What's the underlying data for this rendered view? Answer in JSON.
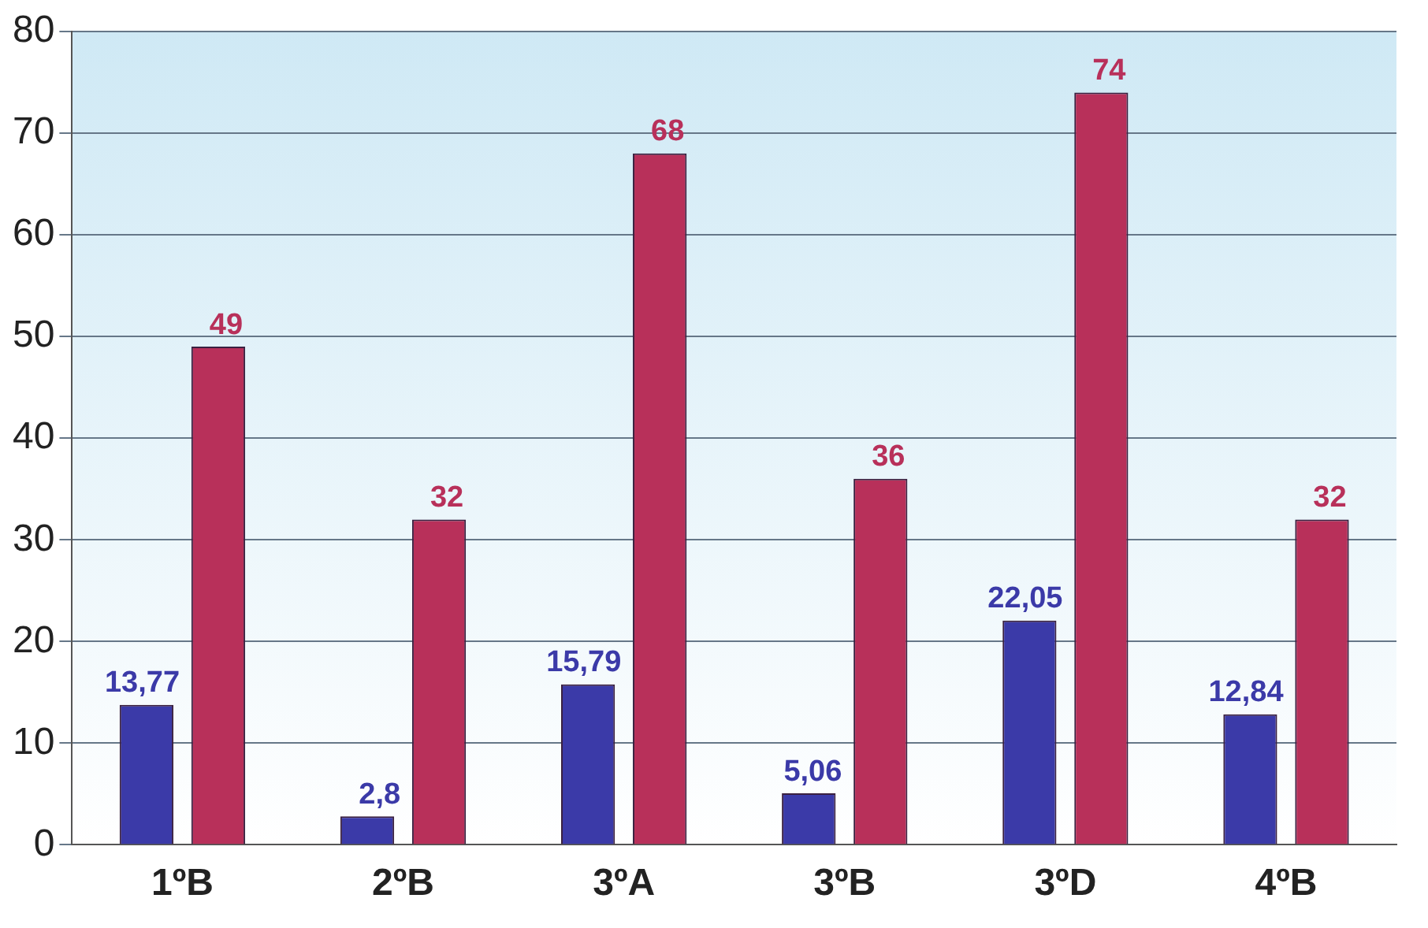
{
  "chart_data": {
    "type": "bar",
    "categories": [
      "1ºB",
      "2ºB",
      "3ºA",
      "3ºB",
      "3ºD",
      "4ºB"
    ],
    "series": [
      {
        "color": "#3b3aa8",
        "values": [
          13.77,
          2.8,
          15.79,
          5.06,
          22.05,
          12.84
        ],
        "value_labels": [
          "13,77",
          "2,8",
          "15,79",
          "5,06",
          "22,05",
          "12,84"
        ]
      },
      {
        "color": "#b8305a",
        "values": [
          49,
          32,
          68,
          36,
          74,
          32
        ],
        "value_labels": [
          "49",
          "32",
          "68",
          "36",
          "74",
          "32"
        ]
      }
    ],
    "ylim": [
      0,
      80
    ],
    "yticks": [
      0,
      10,
      20,
      30,
      40,
      50,
      60,
      70,
      80
    ],
    "grid": "y",
    "legend": false
  }
}
